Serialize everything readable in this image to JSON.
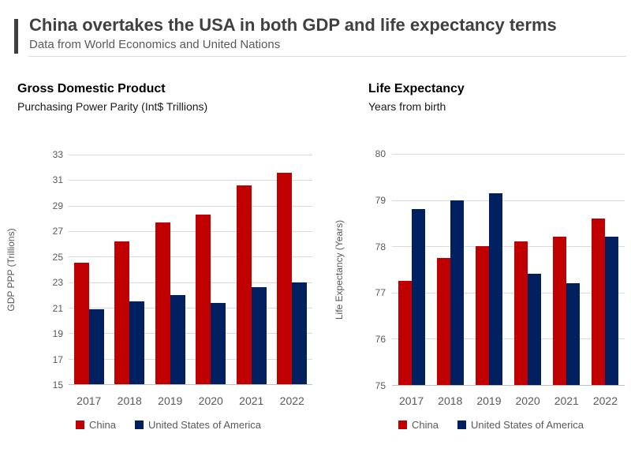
{
  "header": {
    "title": "China overtakes the USA in both GDP and life expectancy terms",
    "subtitle": "Data from World Economics and United Nations"
  },
  "colors": {
    "china": "#C00000",
    "usa": "#002060",
    "gridline": "#D9D9D9",
    "axis_text": "#595959",
    "header_text": "#404040"
  },
  "chart_data": [
    {
      "type": "bar",
      "title": "Gross Domestic Product",
      "subtitle": "Purchasing Power Parity (Int$ Trillions)",
      "ylabel": "GDP PPP (Trillions)",
      "categories": [
        "2017",
        "2018",
        "2019",
        "2020",
        "2021",
        "2022"
      ],
      "series": [
        {
          "name": "China",
          "color": "#C00000",
          "values": [
            24.5,
            26.2,
            27.7,
            28.3,
            30.6,
            31.6
          ]
        },
        {
          "name": "United States of America",
          "color": "#002060",
          "values": [
            20.9,
            21.5,
            22.0,
            21.4,
            22.6,
            23.0
          ]
        }
      ],
      "ylim": [
        15,
        33
      ],
      "ytick_step": 2,
      "grid": true,
      "legend_position": "bottom"
    },
    {
      "type": "bar",
      "title": "Life Expectancy",
      "subtitle": "Years from birth",
      "ylabel": "Life Expectancy (Years)",
      "categories": [
        "2017",
        "2018",
        "2019",
        "2020",
        "2021",
        "2022"
      ],
      "series": [
        {
          "name": "China",
          "color": "#C00000",
          "values": [
            77.25,
            77.75,
            78.0,
            78.1,
            78.2,
            78.6
          ]
        },
        {
          "name": "United States of America",
          "color": "#002060",
          "values": [
            78.8,
            79.0,
            79.15,
            77.4,
            77.2,
            78.2
          ]
        }
      ],
      "ylim": [
        75,
        80
      ],
      "ytick_step": 1,
      "grid": true,
      "legend_position": "bottom"
    }
  ]
}
